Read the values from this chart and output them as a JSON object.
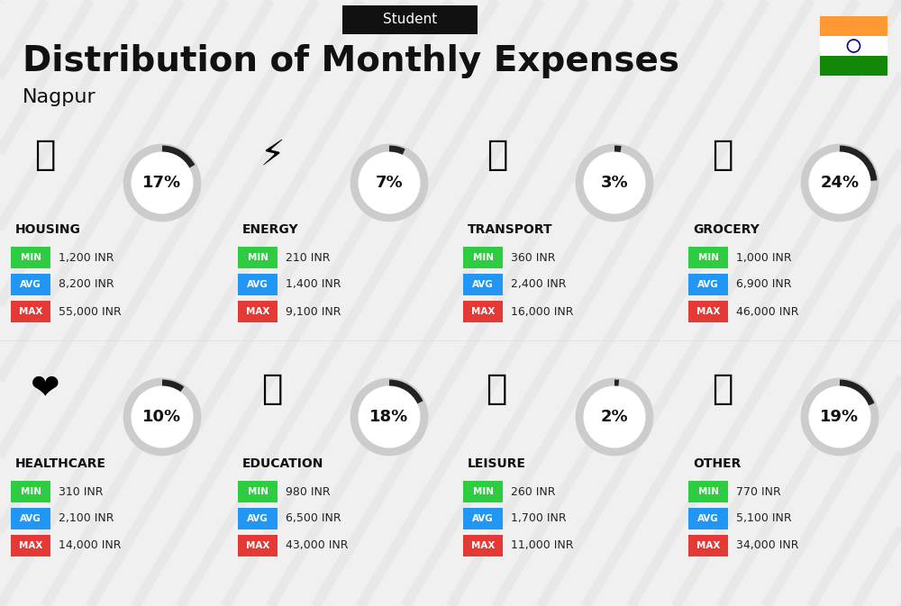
{
  "title": "Distribution of Monthly Expenses",
  "subtitle": "Student",
  "city": "Nagpur",
  "bg_color": "#f0f0f0",
  "categories": [
    {
      "name": "HOUSING",
      "percent": 17,
      "min": "1,200 INR",
      "avg": "8,200 INR",
      "max": "55,000 INR",
      "col": 0,
      "row": 0
    },
    {
      "name": "ENERGY",
      "percent": 7,
      "min": "210 INR",
      "avg": "1,400 INR",
      "max": "9,100 INR",
      "col": 1,
      "row": 0
    },
    {
      "name": "TRANSPORT",
      "percent": 3,
      "min": "360 INR",
      "avg": "2,400 INR",
      "max": "16,000 INR",
      "col": 2,
      "row": 0
    },
    {
      "name": "GROCERY",
      "percent": 24,
      "min": "1,000 INR",
      "avg": "6,900 INR",
      "max": "46,000 INR",
      "col": 3,
      "row": 0
    },
    {
      "name": "HEALTHCARE",
      "percent": 10,
      "min": "310 INR",
      "avg": "2,100 INR",
      "max": "14,000 INR",
      "col": 0,
      "row": 1
    },
    {
      "name": "EDUCATION",
      "percent": 18,
      "min": "980 INR",
      "avg": "6,500 INR",
      "max": "43,000 INR",
      "col": 1,
      "row": 1
    },
    {
      "name": "LEISURE",
      "percent": 2,
      "min": "260 INR",
      "avg": "1,700 INR",
      "max": "11,000 INR",
      "col": 2,
      "row": 1
    },
    {
      "name": "OTHER",
      "percent": 19,
      "min": "770 INR",
      "avg": "5,100 INR",
      "max": "34,000 INR",
      "col": 3,
      "row": 1
    }
  ],
  "min_color": "#2ecc40",
  "avg_color": "#2196f3",
  "max_color": "#e53935",
  "label_color": "#ffffff",
  "title_color": "#111111",
  "category_color": "#111111",
  "value_color": "#222222",
  "circle_bg": "#ffffff",
  "circle_border": "#cccccc",
  "arc_color": "#222222",
  "india_orange": "#FF9933",
  "india_green": "#138808",
  "india_white": "#ffffff"
}
